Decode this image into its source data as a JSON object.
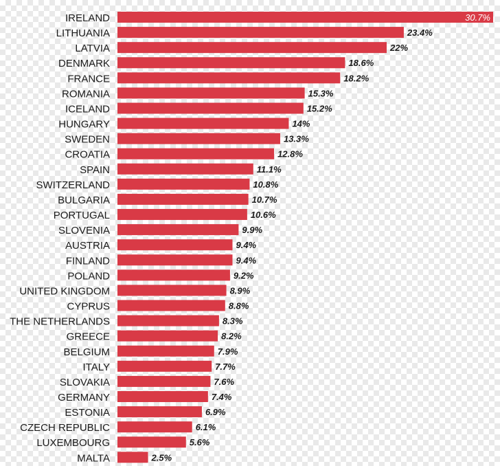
{
  "chart_data": {
    "type": "bar",
    "orientation": "horizontal",
    "bar_color": "#d93a46",
    "categories": [
      "IRELAND",
      "LITHUANIA",
      "LATVIA",
      "DENMARK",
      "FRANCE",
      "ROMANIA",
      "ICELAND",
      "HUNGARY",
      "SWEDEN",
      "CROATIA",
      "SPAIN",
      "SWITZERLAND",
      "BULGARIA",
      "PORTUGAL",
      "SLOVENIA",
      "AUSTRIA",
      "FINLAND",
      "POLAND",
      "UNITED KINGDOM",
      "CYPRUS",
      "THE NETHERLANDS",
      "GREECE",
      "BELGIUM",
      "ITALY",
      "SLOVAKIA",
      "GERMANY",
      "ESTONIA",
      "CZECH REPUBLIC",
      "LUXEMBOURG",
      "MALTA"
    ],
    "values": [
      30.7,
      23.4,
      22,
      18.6,
      18.2,
      15.3,
      15.2,
      14,
      13.3,
      12.8,
      11.1,
      10.8,
      10.7,
      10.6,
      9.9,
      9.4,
      9.4,
      9.2,
      8.9,
      8.8,
      8.3,
      8.2,
      7.9,
      7.7,
      7.6,
      7.4,
      6.9,
      6.1,
      5.6,
      2.5
    ],
    "value_labels": [
      "30.7%",
      "23.4%",
      "22%",
      "18.6%",
      "18.2%",
      "15.3%",
      "15.2%",
      "14%",
      "13.3%",
      "12.8%",
      "11.1%",
      "10.8%",
      "10.7%",
      "10.6%",
      "9.9%",
      "9.4%",
      "9.4%",
      "9.2%",
      "8.9%",
      "8.8%",
      "8.3%",
      "8.2%",
      "7.9%",
      "7.7%",
      "7.6%",
      "7.4%",
      "6.9%",
      "6.1%",
      "5.6%",
      "2.5%"
    ]
  }
}
